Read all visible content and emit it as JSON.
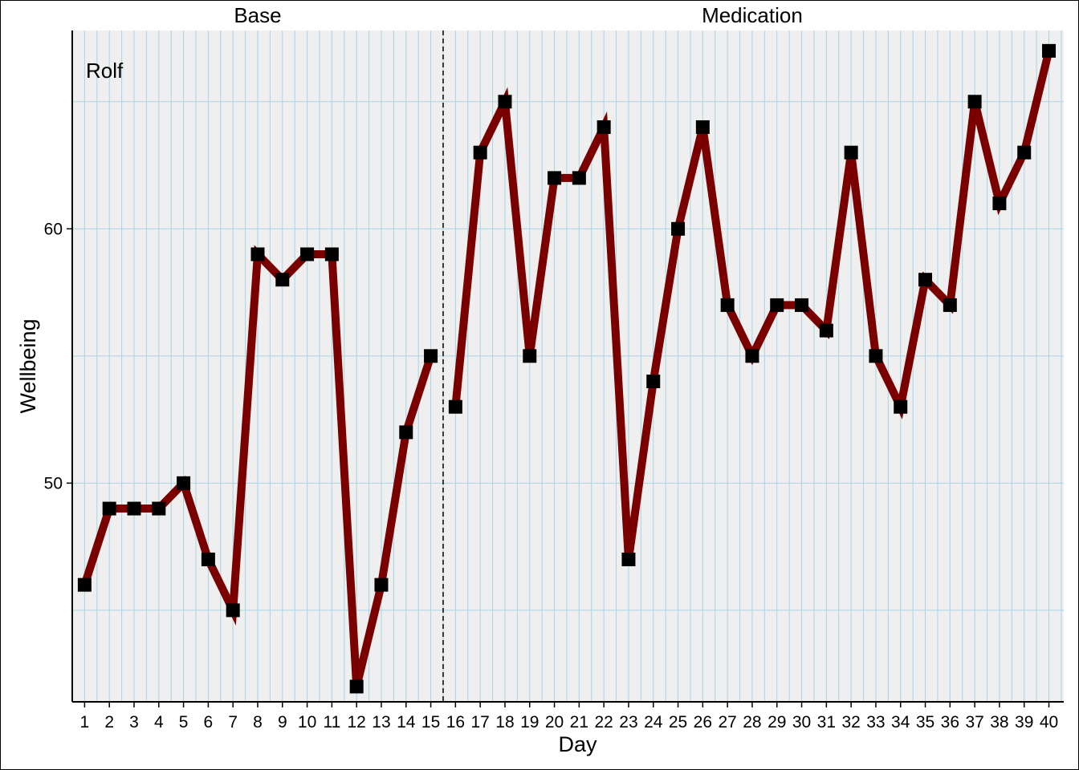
{
  "chart_data": {
    "type": "line",
    "panel_label": "Rolf",
    "xlabel": "Day",
    "ylabel": "Wellbeing",
    "xlim": [
      0.5,
      40.6
    ],
    "ylim": [
      41.4,
      67.8
    ],
    "y_major_ticks": [
      50,
      60
    ],
    "y_minor_gridlines": [
      45,
      55,
      65
    ],
    "grid": true,
    "phases": [
      {
        "name": "Base",
        "start": 1,
        "end": 15
      },
      {
        "name": "Medication",
        "start": 16,
        "end": 40
      }
    ],
    "phase_change_at": 15.5,
    "colors": {
      "line": "#7a0000",
      "marker": "#000000",
      "panel_bg": "#efefef",
      "grid": "#a8d4e6"
    },
    "series": [
      {
        "segments": [
          {
            "x": [
              1,
              2,
              3,
              4,
              5,
              6,
              7,
              8,
              9,
              10,
              11,
              12,
              13,
              14,
              15
            ],
            "y": [
              46,
              49,
              49,
              49,
              50,
              47,
              45,
              59,
              58,
              59,
              59,
              42,
              46,
              52,
              55
            ]
          },
          {
            "x": [
              16,
              17,
              18,
              19,
              20,
              21,
              22,
              23,
              24,
              25,
              26,
              27,
              28,
              29,
              30,
              31,
              32,
              33,
              34,
              35,
              36,
              37,
              38,
              39,
              40
            ],
            "y": [
              53,
              63,
              65,
              55,
              62,
              62,
              64,
              47,
              54,
              60,
              64,
              57,
              55,
              57,
              57,
              56,
              63,
              55,
              53,
              58,
              57,
              65,
              61,
              63,
              67
            ]
          }
        ]
      }
    ]
  }
}
